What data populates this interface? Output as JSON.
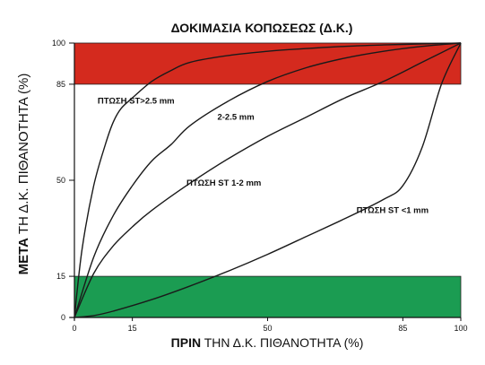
{
  "chart_data": {
    "type": "line",
    "title": "ΔΟΚΙΜΑΣΙΑ ΚΟΠΩΣΕΩΣ (Δ.Κ.)",
    "xlabel": {
      "bold": "ΠΡΙΝ",
      "rest": " ΤΗΝ Δ.Κ. ΠΙΘΑΝΟΤΗΤΑ (%)"
    },
    "ylabel": {
      "bold": "ΜΕΤΑ",
      "rest": " ΤΗ Δ.Κ. ΠΙΘΑΝΟΤΗΤΑ (%)"
    },
    "xlim": [
      0,
      100
    ],
    "ylim": [
      0,
      100
    ],
    "xticks": [
      0,
      15,
      50,
      85,
      100
    ],
    "yticks": [
      0,
      15,
      50,
      85,
      100
    ],
    "bands": [
      {
        "name": "high-band",
        "y0": 85,
        "y1": 100,
        "color": "#d42a1e"
      },
      {
        "name": "low-band",
        "y0": 0,
        "y1": 15,
        "color": "#1b9c52"
      }
    ],
    "series": [
      {
        "name": "ΠΤΩΣΗ ST>2.5 mm",
        "x": [
          0,
          2,
          5,
          8,
          10,
          12,
          15,
          20,
          25,
          30,
          40,
          50,
          60,
          70,
          80,
          90,
          100
        ],
        "y": [
          0,
          25,
          48,
          63,
          71,
          76,
          80,
          86,
          90,
          93,
          95.5,
          97,
          98,
          98.8,
          99.3,
          99.7,
          100
        ]
      },
      {
        "name": "2-2.5 mm",
        "x": [
          0,
          5,
          10,
          15,
          20,
          25,
          30,
          40,
          50,
          60,
          70,
          80,
          90,
          100
        ],
        "y": [
          0,
          22,
          37,
          48,
          57,
          63,
          70,
          79,
          86,
          91,
          94.5,
          97,
          98.8,
          100
        ]
      },
      {
        "name": "ΠΤΩΣΗ ST 1-2 mm",
        "x": [
          0,
          5,
          10,
          15,
          20,
          30,
          40,
          50,
          60,
          70,
          80,
          90,
          100
        ],
        "y": [
          0,
          16,
          26,
          33,
          39,
          49,
          58,
          66,
          73,
          80,
          86,
          93,
          100
        ]
      },
      {
        "name": "ΠΤΩΣΗ ST <1 mm",
        "x": [
          0,
          5,
          10,
          20,
          30,
          40,
          50,
          60,
          70,
          80,
          85,
          90,
          95,
          100
        ],
        "y": [
          0,
          0.7,
          2.3,
          6.5,
          11.5,
          17,
          23,
          29.5,
          36,
          43,
          48,
          62,
          85,
          100
        ]
      }
    ],
    "annotations": [
      {
        "name": "annotation-st-gt-2-5",
        "text": "ΠΤΩΣΗ ST>2.5 mm",
        "x": 6,
        "y": 78
      },
      {
        "name": "annotation-2-2-5",
        "text": "2-2.5 mm",
        "x": 37,
        "y": 72
      },
      {
        "name": "annotation-st-1-2",
        "text": "ΠΤΩΣΗ ST 1-2 mm",
        "x": 29,
        "y": 48
      },
      {
        "name": "annotation-st-lt-1",
        "text": "ΠΤΩΣΗ ST <1 mm",
        "x": 73,
        "y": 38
      }
    ]
  }
}
